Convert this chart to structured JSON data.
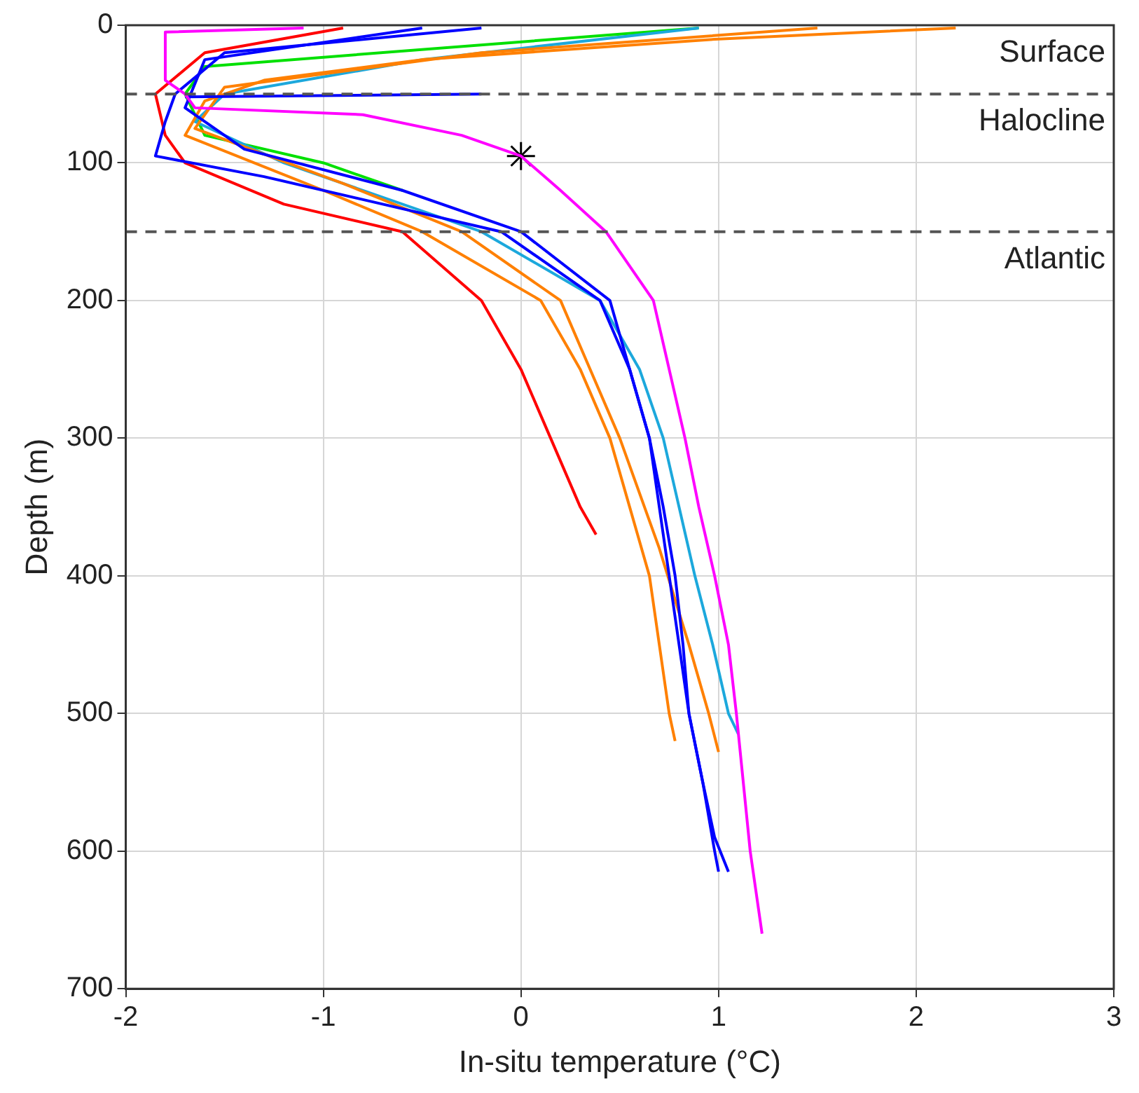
{
  "chart_data": {
    "type": "line",
    "xlabel": "In-situ temperature (°C)",
    "ylabel": "Depth (m)",
    "xlim": [
      -2,
      3
    ],
    "xticks": [
      -2,
      -1,
      0,
      1,
      2,
      3
    ],
    "ylim": [
      700,
      0
    ],
    "yticks": [
      0,
      100,
      200,
      300,
      400,
      500,
      600,
      700
    ],
    "grid": true,
    "legend": false,
    "marker": "none",
    "line_style": "solid",
    "series": [
      {
        "color": "#ff00ff",
        "x": [
          -1.1,
          -1.8,
          -1.8,
          -1.7,
          -1.65,
          -0.8,
          -0.3,
          0,
          0.2,
          0.43,
          0.67,
          0.75,
          0.83,
          0.9,
          0.98,
          1.05,
          1.09,
          1.16,
          1.22
        ],
        "values": [
          2,
          5,
          40,
          50,
          60,
          65,
          80,
          95,
          120,
          150,
          200,
          250,
          300,
          350,
          400,
          450,
          500,
          600,
          660
        ]
      },
      {
        "color": "#0000ff",
        "x": [
          -0.2,
          -1.5,
          -1.75,
          -1.8,
          -1.85,
          -1.3,
          -0.7,
          -0.1,
          0.4,
          0.55,
          0.65,
          0.72,
          0.78,
          0.82,
          0.85,
          0.92,
          0.98,
          1.0
        ],
        "values": [
          2,
          20,
          50,
          70,
          95,
          110,
          130,
          150,
          200,
          250,
          300,
          350,
          400,
          450,
          500,
          550,
          600,
          615
        ]
      },
      {
        "color": "#0000ff",
        "x": [
          -0.5,
          -1.6,
          -1.7,
          -1.4,
          -0.6,
          0,
          0.45,
          0.65,
          0.75,
          0.85,
          0.92,
          0.98,
          1.05
        ],
        "values": [
          2,
          25,
          60,
          90,
          120,
          150,
          200,
          300,
          400,
          500,
          550,
          590,
          615
        ]
      },
      {
        "color": "#0000ff",
        "x": [
          -0.2,
          -1.7
        ],
        "values": [
          50,
          52
        ]
      },
      {
        "color": "#ff8000",
        "x": [
          2.2,
          1.0,
          -0.5,
          -1.3,
          -1.6,
          -1.7,
          -1.0,
          -0.5,
          0.1,
          0.3,
          0.45,
          0.55,
          0.65,
          0.7,
          0.75,
          0.78
        ],
        "values": [
          2,
          10,
          25,
          40,
          55,
          80,
          120,
          150,
          200,
          250,
          300,
          350,
          400,
          450,
          500,
          520
        ]
      },
      {
        "color": "#ff8000",
        "x": [
          1.5,
          -0.2,
          -1.5,
          -1.65,
          -0.9,
          -0.3,
          0.2,
          0.5,
          0.7,
          0.85,
          0.95,
          1.0
        ],
        "values": [
          2,
          20,
          45,
          75,
          115,
          150,
          200,
          300,
          380,
          450,
          500,
          528
        ]
      },
      {
        "color": "#1ca8dc",
        "x": [
          0.9,
          -0.5,
          -1.5,
          -1.65,
          -1.2,
          -0.2,
          0.4,
          0.6,
          0.72,
          0.8,
          0.88,
          0.97,
          1.05,
          1.1
        ],
        "values": [
          2,
          25,
          50,
          70,
          100,
          150,
          200,
          250,
          300,
          350,
          400,
          450,
          500,
          515
        ]
      },
      {
        "color": "#ff0000",
        "x": [
          -0.9,
          -1.6,
          -1.85,
          -1.8,
          -1.7,
          -1.2,
          -0.6,
          -0.2,
          0,
          0.15,
          0.3,
          0.38
        ],
        "values": [
          2,
          20,
          50,
          80,
          100,
          130,
          150,
          200,
          250,
          300,
          350,
          370
        ]
      },
      {
        "color": "#00e000",
        "x": [
          0.9,
          -1.6,
          -1.7,
          -1.6,
          -1.0,
          -0.6
        ],
        "values": [
          2,
          30,
          50,
          80,
          100,
          120
        ]
      },
      {
        "type": "scatter",
        "marker": "cross",
        "color": "#000000",
        "x": [
          0
        ],
        "values": [
          95
        ]
      }
    ],
    "ref_lines": [
      {
        "axis": "y",
        "value": 50,
        "color": "#555555",
        "line_style": "dashed"
      },
      {
        "axis": "y",
        "value": 150,
        "color": "#555555",
        "line_style": "dashed"
      }
    ],
    "annotations": [
      "Surface",
      "Halocline",
      "Atlantic"
    ]
  }
}
